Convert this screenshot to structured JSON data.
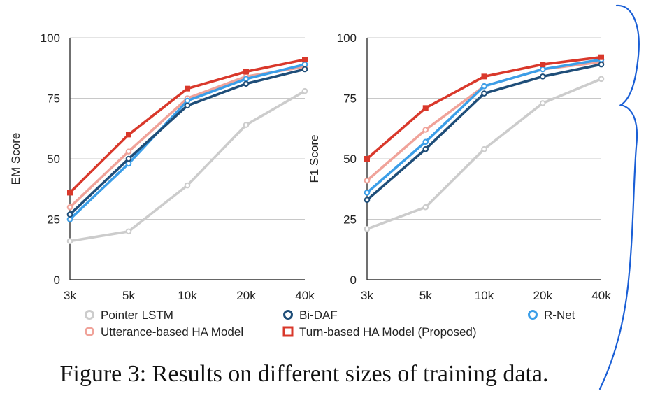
{
  "caption": "Figure 3: Results on different sizes of training data.",
  "colors": {
    "Pointer LSTM": "#cccccc",
    "Bi-DAF": "#1f4e79",
    "R-Net": "#3b9ee8",
    "Utterance-based HA Model": "#f0a39a",
    "Turn-based HA Model (Proposed)": "#d9382b",
    "grid": "#c8c8c8",
    "annotation": "#1a5fd6"
  },
  "legend": {
    "items": [
      "Pointer LSTM",
      "Bi-DAF",
      "R-Net",
      "Utterance-based HA Model",
      "Turn-based HA Model (Proposed)"
    ]
  },
  "chart_data": [
    {
      "type": "line",
      "ylabel": "EM Score",
      "categories": [
        "3k",
        "5k",
        "10k",
        "20k",
        "40k"
      ],
      "ylim": [
        0,
        100
      ],
      "yticks": [
        0,
        25,
        50,
        75,
        100
      ],
      "grid": true,
      "series": [
        {
          "name": "Pointer LSTM",
          "marker": "circle",
          "values": [
            16,
            20,
            39,
            64,
            78
          ]
        },
        {
          "name": "Utterance-based HA Model",
          "marker": "circle",
          "values": [
            30,
            53,
            75,
            84,
            88
          ]
        },
        {
          "name": "R-Net",
          "marker": "circle",
          "values": [
            25,
            48,
            74,
            83,
            89
          ]
        },
        {
          "name": "Bi-DAF",
          "marker": "circle",
          "values": [
            27,
            50,
            72,
            81,
            87
          ]
        },
        {
          "name": "Turn-based HA Model (Proposed)",
          "marker": "square",
          "values": [
            36,
            60,
            79,
            86,
            91
          ]
        }
      ]
    },
    {
      "type": "line",
      "ylabel": "F1 Score",
      "categories": [
        "3k",
        "5k",
        "10k",
        "20k",
        "40k"
      ],
      "ylim": [
        0,
        100
      ],
      "yticks": [
        0,
        25,
        50,
        75,
        100
      ],
      "grid": true,
      "series": [
        {
          "name": "Pointer LSTM",
          "marker": "circle",
          "values": [
            21,
            30,
            54,
            73,
            83
          ]
        },
        {
          "name": "Utterance-based HA Model",
          "marker": "circle",
          "values": [
            41,
            62,
            80,
            87,
            90
          ]
        },
        {
          "name": "R-Net",
          "marker": "circle",
          "values": [
            36,
            57,
            80,
            87,
            91
          ]
        },
        {
          "name": "Bi-DAF",
          "marker": "circle",
          "values": [
            33,
            54,
            77,
            84,
            89
          ]
        },
        {
          "name": "Turn-based HA Model (Proposed)",
          "marker": "square",
          "values": [
            50,
            71,
            84,
            89,
            92
          ]
        }
      ]
    }
  ]
}
